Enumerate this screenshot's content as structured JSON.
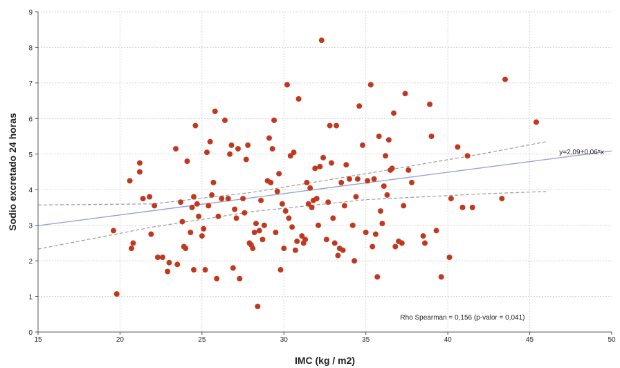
{
  "chart_data": {
    "type": "scatter",
    "xlabel": "IMC (kg / m2)",
    "ylabel": "Sodio excretado 24 horas",
    "xlim": [
      15,
      50
    ],
    "ylim": [
      0,
      9
    ],
    "xticks": [
      "15",
      "20",
      "25",
      "30",
      "35",
      "40",
      "45",
      "50"
    ],
    "yticks": [
      "0",
      "1",
      "2",
      "3",
      "4",
      "5",
      "6",
      "7",
      "8",
      "9"
    ],
    "grid": true,
    "colors": {
      "point": "#c0391f",
      "fit": "#94a6cf",
      "ci": "#9a9a9a",
      "grid": "#d4d4d4"
    },
    "fit_line": {
      "intercept": 2.09,
      "slope": 0.06,
      "label": "y=2,09+0,06*x"
    },
    "ci_lower": [
      [
        15,
        2.33
      ],
      [
        22,
        2.95
      ],
      [
        28,
        3.38
      ],
      [
        35,
        3.72
      ],
      [
        42,
        3.88
      ],
      [
        46,
        3.95
      ]
    ],
    "ci_upper": [
      [
        15,
        3.57
      ],
      [
        22,
        3.6
      ],
      [
        28,
        3.92
      ],
      [
        35,
        4.45
      ],
      [
        42,
        5.0
      ],
      [
        46,
        5.35
      ]
    ],
    "annotation": "Rho Spearman = 0,156 (p-valor = 0,041)",
    "points": [
      [
        19.6,
        2.85
      ],
      [
        19.8,
        1.07
      ],
      [
        20.6,
        4.25
      ],
      [
        20.7,
        2.35
      ],
      [
        20.8,
        2.5
      ],
      [
        21.2,
        4.75
      ],
      [
        21.2,
        4.5
      ],
      [
        21.4,
        3.75
      ],
      [
        21.8,
        3.8
      ],
      [
        21.9,
        2.75
      ],
      [
        22.1,
        3.55
      ],
      [
        22.3,
        2.1
      ],
      [
        22.6,
        2.1
      ],
      [
        22.9,
        1.7
      ],
      [
        23,
        1.95
      ],
      [
        23.4,
        5.15
      ],
      [
        23.5,
        1.9
      ],
      [
        23.7,
        3.65
      ],
      [
        23.8,
        3.1
      ],
      [
        23.9,
        2.4
      ],
      [
        24,
        2.35
      ],
      [
        24.1,
        4.8
      ],
      [
        24.3,
        2.8
      ],
      [
        24.4,
        3.5
      ],
      [
        24.5,
        1.75
      ],
      [
        24.5,
        3.8
      ],
      [
        24.6,
        5.8
      ],
      [
        24.7,
        3.6
      ],
      [
        24.8,
        3.25
      ],
      [
        25,
        2.7
      ],
      [
        25.1,
        2.9
      ],
      [
        25.2,
        1.75
      ],
      [
        25.3,
        5.05
      ],
      [
        25.4,
        3.55
      ],
      [
        25.5,
        5.35
      ],
      [
        25.6,
        3.85
      ],
      [
        25.7,
        4.2
      ],
      [
        25.8,
        6.2
      ],
      [
        25.9,
        1.5
      ],
      [
        26,
        3.25
      ],
      [
        26.2,
        3.75
      ],
      [
        26.4,
        5.95
      ],
      [
        26.6,
        3.75
      ],
      [
        26.7,
        5.0
      ],
      [
        26.8,
        5.25
      ],
      [
        26.9,
        1.8
      ],
      [
        27,
        3.45
      ],
      [
        27.1,
        3.2
      ],
      [
        27.2,
        5.15
      ],
      [
        27.3,
        1.5
      ],
      [
        27.5,
        3.75
      ],
      [
        27.6,
        3.35
      ],
      [
        27.7,
        4.85
      ],
      [
        27.8,
        5.25
      ],
      [
        27.9,
        2.5
      ],
      [
        28,
        2.45
      ],
      [
        28.1,
        2.35
      ],
      [
        28.2,
        2.8
      ],
      [
        28.3,
        3.05
      ],
      [
        28.4,
        0.72
      ],
      [
        28.5,
        2.85
      ],
      [
        28.6,
        3.7
      ],
      [
        28.7,
        2.6
      ],
      [
        28.8,
        3.0
      ],
      [
        29,
        4.25
      ],
      [
        29.1,
        5.45
      ],
      [
        29.2,
        4.2
      ],
      [
        29.3,
        5.15
      ],
      [
        29.4,
        5.95
      ],
      [
        29.5,
        2.8
      ],
      [
        29.6,
        3.95
      ],
      [
        29.7,
        4.45
      ],
      [
        29.8,
        1.75
      ],
      [
        29.9,
        3.6
      ],
      [
        30,
        2.35
      ],
      [
        30.1,
        3.4
      ],
      [
        30.2,
        6.95
      ],
      [
        30.3,
        3.2
      ],
      [
        30.4,
        4.95
      ],
      [
        30.5,
        2.95
      ],
      [
        30.6,
        5.05
      ],
      [
        30.7,
        2.3
      ],
      [
        30.8,
        2.55
      ],
      [
        30.9,
        6.55
      ],
      [
        31.1,
        2.7
      ],
      [
        31.2,
        2.5
      ],
      [
        31.3,
        2.6
      ],
      [
        31.4,
        4.2
      ],
      [
        31.5,
        3.6
      ],
      [
        31.6,
        4.05
      ],
      [
        31.7,
        3.5
      ],
      [
        31.8,
        3.7
      ],
      [
        31.9,
        4.6
      ],
      [
        32,
        3.75
      ],
      [
        32.1,
        3.0
      ],
      [
        32.2,
        4.65
      ],
      [
        32.3,
        8.2
      ],
      [
        32.4,
        4.9
      ],
      [
        32.6,
        2.6
      ],
      [
        32.7,
        3.65
      ],
      [
        32.8,
        5.8
      ],
      [
        32.9,
        4.75
      ],
      [
        33,
        3.2
      ],
      [
        33.1,
        2.5
      ],
      [
        33.2,
        5.8
      ],
      [
        33.3,
        2.15
      ],
      [
        33.4,
        2.35
      ],
      [
        33.5,
        4.2
      ],
      [
        33.6,
        2.3
      ],
      [
        33.7,
        3.55
      ],
      [
        33.8,
        4.7
      ],
      [
        34,
        4.3
      ],
      [
        34.2,
        3.0
      ],
      [
        34.3,
        2.0
      ],
      [
        34.4,
        3.8
      ],
      [
        34.5,
        4.3
      ],
      [
        34.6,
        6.35
      ],
      [
        34.8,
        5.25
      ],
      [
        35,
        2.8
      ],
      [
        35.1,
        4.25
      ],
      [
        35.3,
        6.95
      ],
      [
        35.4,
        2.4
      ],
      [
        35.5,
        4.3
      ],
      [
        35.6,
        2.75
      ],
      [
        35.7,
        1.55
      ],
      [
        35.8,
        5.5
      ],
      [
        35.9,
        3.4
      ],
      [
        36,
        3.05
      ],
      [
        36.1,
        4.1
      ],
      [
        36.2,
        4.95
      ],
      [
        36.3,
        3.85
      ],
      [
        36.4,
        5.4
      ],
      [
        36.5,
        4.55
      ],
      [
        36.6,
        4.6
      ],
      [
        36.7,
        6.15
      ],
      [
        36.8,
        2.4
      ],
      [
        37,
        2.55
      ],
      [
        37.2,
        2.5
      ],
      [
        37.3,
        3.55
      ],
      [
        37.4,
        6.7
      ],
      [
        37.6,
        4.55
      ],
      [
        37.8,
        4.2
      ],
      [
        38.5,
        2.7
      ],
      [
        38.6,
        2.5
      ],
      [
        38.9,
        6.4
      ],
      [
        39,
        5.5
      ],
      [
        39.3,
        2.85
      ],
      [
        39.6,
        1.55
      ],
      [
        40.1,
        2.1
      ],
      [
        40.2,
        3.75
      ],
      [
        40.6,
        5.2
      ],
      [
        40.9,
        3.5
      ],
      [
        41.2,
        4.95
      ],
      [
        41.5,
        3.5
      ],
      [
        43.3,
        3.75
      ],
      [
        43.5,
        7.1
      ],
      [
        45.4,
        5.9
      ]
    ]
  }
}
